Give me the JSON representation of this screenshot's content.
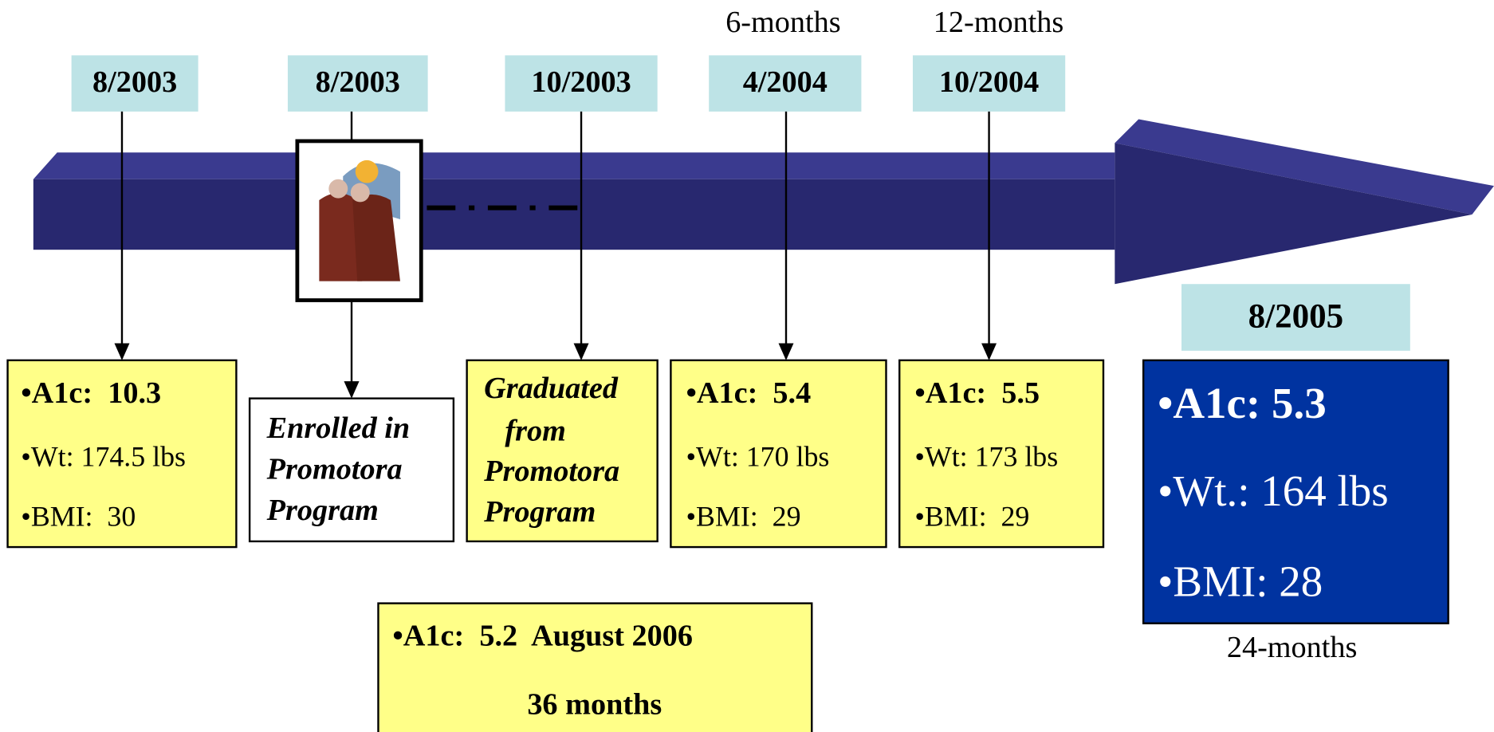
{
  "top_notes": [
    "6-months",
    "12-months"
  ],
  "timeline": [
    {
      "date": "8/2003",
      "lines": [
        "•A1c:  10.3",
        "•Wt: 174.5 lbs",
        "•BMI:  30"
      ]
    },
    {
      "date": "8/2003",
      "lines": [
        "Enrolled in",
        "Promotora",
        "Program"
      ]
    },
    {
      "date": "10/2003",
      "lines": [
        "Graduated",
        "from",
        "Promotora",
        "Program"
      ]
    },
    {
      "date": "4/2004",
      "lines": [
        "•A1c:  5.4",
        "•Wt: 170 lbs",
        "•BMI:  29"
      ]
    },
    {
      "date": "10/2004",
      "lines": [
        "•A1c:  5.5",
        "•Wt: 173 lbs",
        "•BMI:  29"
      ]
    }
  ],
  "final": {
    "date": "8/2005",
    "lines": [
      "•A1c: 5.3",
      "•Wt.: 164 lbs",
      "•BMI: 28"
    ],
    "note": "24-months"
  },
  "summary": [
    "•A1c:  5.2  August 2006",
    "36 months"
  ]
}
